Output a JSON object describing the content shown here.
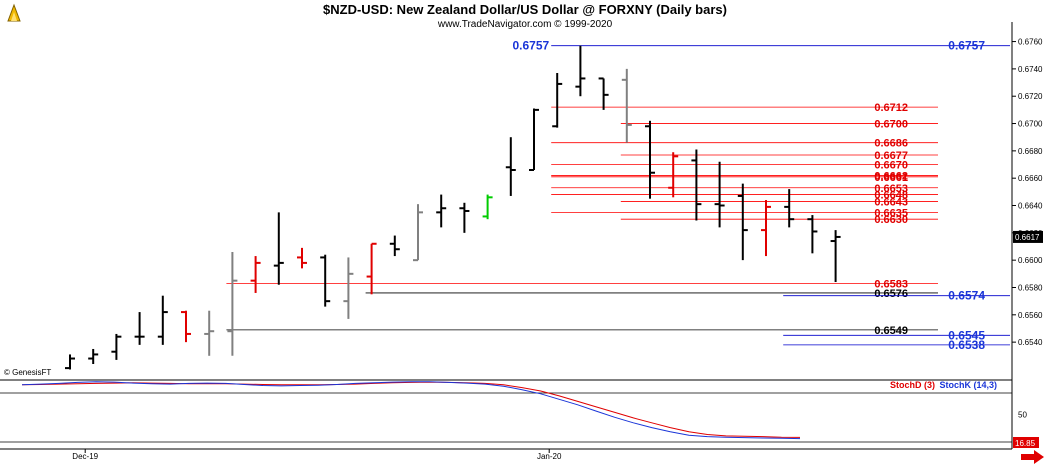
{
  "header": {
    "title": "$NZD-USD:  New Zealand Dollar/US Dollar @ FORXNY  (Daily bars)",
    "subtitle": "www.TradeNavigator.com © 1999-2020"
  },
  "watermark": "© GenesisFT",
  "legend": {
    "stoch_d": "StochD (3)",
    "stoch_k": "StochK (14,3)"
  },
  "colors": {
    "bar_black": "#000000",
    "bar_gray": "#808080",
    "bar_red": "#e00000",
    "bar_green": "#00cc00",
    "level_red": "#ff0000",
    "level_blue": "#0000cc",
    "level_black": "#000000",
    "label_red": "#e00000",
    "label_blue": "#1a35d8",
    "stoch_d": "#e00000",
    "stoch_k": "#1a35d8"
  },
  "chart_data": [
    {
      "type": "ohlc",
      "title": "$NZD-USD:  New Zealand Dollar/US Dollar @ FORXNY  (Daily bars)",
      "ylim": [
        0.6524,
        0.6767
      ],
      "yticks": [
        "0.6760",
        "0.6740",
        "0.6720",
        "0.6700",
        "0.6680",
        "0.6660",
        "0.6640",
        "0.6620",
        "0.6600",
        "0.6580",
        "0.6560",
        "0.6540"
      ],
      "xticks": [
        {
          "label": "Dec-19",
          "bar": 1
        },
        {
          "label": "Jan-20",
          "bar": 21
        }
      ],
      "last_price": "0.6617",
      "bars": [
        {
          "o": 0.6521,
          "h": 0.6531,
          "l": 0.652,
          "c": 0.6528,
          "color": "black"
        },
        {
          "o": 0.6528,
          "h": 0.6535,
          "l": 0.6524,
          "c": 0.6531,
          "color": "black"
        },
        {
          "o": 0.6533,
          "h": 0.6546,
          "l": 0.6527,
          "c": 0.6544,
          "color": "black"
        },
        {
          "o": 0.6544,
          "h": 0.6562,
          "l": 0.6538,
          "c": 0.6544,
          "color": "black"
        },
        {
          "o": 0.6544,
          "h": 0.6574,
          "l": 0.6538,
          "c": 0.6562,
          "color": "black"
        },
        {
          "o": 0.6562,
          "h": 0.6563,
          "l": 0.654,
          "c": 0.6546,
          "color": "red"
        },
        {
          "o": 0.6546,
          "h": 0.6563,
          "l": 0.653,
          "c": 0.6548,
          "color": "gray"
        },
        {
          "o": 0.6548,
          "h": 0.6606,
          "l": 0.653,
          "c": 0.6585,
          "color": "gray"
        },
        {
          "o": 0.6585,
          "h": 0.6603,
          "l": 0.6576,
          "c": 0.6598,
          "color": "red"
        },
        {
          "o": 0.6596,
          "h": 0.6635,
          "l": 0.6582,
          "c": 0.6598,
          "color": "black"
        },
        {
          "o": 0.6602,
          "h": 0.6609,
          "l": 0.6594,
          "c": 0.6598,
          "color": "red"
        },
        {
          "o": 0.6602,
          "h": 0.6604,
          "l": 0.6566,
          "c": 0.657,
          "color": "black"
        },
        {
          "o": 0.657,
          "h": 0.6602,
          "l": 0.6557,
          "c": 0.659,
          "color": "gray"
        },
        {
          "o": 0.6588,
          "h": 0.6612,
          "l": 0.6575,
          "c": 0.6612,
          "color": "red"
        },
        {
          "o": 0.6612,
          "h": 0.6618,
          "l": 0.6603,
          "c": 0.6608,
          "color": "black"
        },
        {
          "o": 0.66,
          "h": 0.6641,
          "l": 0.66,
          "c": 0.6635,
          "color": "gray"
        },
        {
          "o": 0.6635,
          "h": 0.6648,
          "l": 0.6624,
          "c": 0.6638,
          "color": "black"
        },
        {
          "o": 0.6638,
          "h": 0.6642,
          "l": 0.662,
          "c": 0.6636,
          "color": "black"
        },
        {
          "o": 0.6632,
          "h": 0.6648,
          "l": 0.663,
          "c": 0.6646,
          "color": "green"
        },
        {
          "o": 0.6668,
          "h": 0.669,
          "l": 0.6647,
          "c": 0.6666,
          "color": "black"
        },
        {
          "o": 0.6666,
          "h": 0.6711,
          "l": 0.6666,
          "c": 0.671,
          "color": "black"
        },
        {
          "o": 0.6698,
          "h": 0.6737,
          "l": 0.6697,
          "c": 0.6729,
          "color": "black"
        },
        {
          "o": 0.6727,
          "h": 0.6757,
          "l": 0.672,
          "c": 0.6733,
          "color": "black"
        },
        {
          "o": 0.6733,
          "h": 0.6733,
          "l": 0.671,
          "c": 0.6721,
          "color": "black"
        },
        {
          "o": 0.6732,
          "h": 0.674,
          "l": 0.6686,
          "c": 0.6699,
          "color": "gray"
        },
        {
          "o": 0.6698,
          "h": 0.6702,
          "l": 0.6645,
          "c": 0.6664,
          "color": "black"
        },
        {
          "o": 0.6653,
          "h": 0.6679,
          "l": 0.6646,
          "c": 0.6676,
          "color": "red"
        },
        {
          "o": 0.6673,
          "h": 0.6681,
          "l": 0.6629,
          "c": 0.6641,
          "color": "black"
        },
        {
          "o": 0.6641,
          "h": 0.6672,
          "l": 0.6624,
          "c": 0.664,
          "color": "black"
        },
        {
          "o": 0.6647,
          "h": 0.6656,
          "l": 0.66,
          "c": 0.6622,
          "color": "black"
        },
        {
          "o": 0.6622,
          "h": 0.6644,
          "l": 0.6603,
          "c": 0.6639,
          "color": "red"
        },
        {
          "o": 0.6639,
          "h": 0.6652,
          "l": 0.6624,
          "c": 0.663,
          "color": "black"
        },
        {
          "o": 0.663,
          "h": 0.6633,
          "l": 0.6605,
          "c": 0.6621,
          "color": "black"
        },
        {
          "o": 0.6614,
          "h": 0.6622,
          "l": 0.6584,
          "c": 0.6617,
          "color": "black"
        }
      ],
      "levels": [
        {
          "value": 0.6757,
          "label": "0.6757",
          "color": "blue",
          "from_bar": 21,
          "left_label": "0.6757"
        },
        {
          "value": 0.6712,
          "label": "0.6712",
          "color": "red",
          "from_bar": 21
        },
        {
          "value": 0.67,
          "label": "0.6700",
          "color": "red",
          "from_bar": 24
        },
        {
          "value": 0.6686,
          "label": "0.6686",
          "color": "red",
          "from_bar": 21
        },
        {
          "value": 0.6677,
          "label": "0.6677",
          "color": "red",
          "from_bar": 24
        },
        {
          "value": 0.667,
          "label": "0.6670",
          "color": "red",
          "from_bar": 21
        },
        {
          "value": 0.6662,
          "label": "0.6662",
          "color": "red",
          "from_bar": 21
        },
        {
          "value": 0.6661,
          "label": "0.6661",
          "color": "red",
          "from_bar": 21
        },
        {
          "value": 0.6653,
          "label": "0.6653",
          "color": "red",
          "from_bar": 21
        },
        {
          "value": 0.6648,
          "label": "0.6648",
          "color": "red",
          "from_bar": 21
        },
        {
          "value": 0.6643,
          "label": "0.6643",
          "color": "red",
          "from_bar": 24
        },
        {
          "value": 0.6635,
          "label": "0.6635",
          "color": "red",
          "from_bar": 21
        },
        {
          "value": 0.663,
          "label": "0.6630",
          "color": "red",
          "from_bar": 24
        },
        {
          "value": 0.6583,
          "label": "0.6583",
          "color": "red",
          "from_bar": 7
        },
        {
          "value": 0.6576,
          "label": "0.6576",
          "color": "black",
          "from_bar": 13
        },
        {
          "value": 0.6574,
          "label": "0.6574",
          "color": "blue",
          "from_bar": 31
        },
        {
          "value": 0.6549,
          "label": "0.6549",
          "color": "black",
          "from_bar": 7
        },
        {
          "value": 0.6545,
          "label": "0.6545",
          "color": "blue",
          "from_bar": 31
        },
        {
          "value": 0.6538,
          "label": "0.6538",
          "color": "blue",
          "from_bar": 31
        }
      ]
    },
    {
      "type": "line",
      "title": "",
      "ylim": [
        0,
        100
      ],
      "yticks": [
        "50"
      ],
      "last_value": "16.85",
      "series": [
        {
          "name": "StochD (3)",
          "color": "red",
          "values": [
            93,
            93.5,
            94,
            94.5,
            95,
            95.5,
            96,
            95.5,
            95,
            94.5,
            94.5,
            94.5,
            94,
            93.5,
            93,
            93,
            93,
            93.5,
            94,
            95,
            96,
            96.5,
            97,
            96.5,
            96,
            95,
            93,
            89,
            84,
            77,
            69,
            61,
            53,
            45,
            38,
            31,
            25,
            21,
            19,
            18.5,
            18,
            17,
            16.85
          ]
        },
        {
          "name": "StochK (14,3)",
          "color": "blue",
          "values": [
            93,
            94,
            95,
            96.5,
            97.5,
            97,
            95.5,
            94.5,
            94,
            95,
            95.5,
            95,
            93.5,
            92,
            91.5,
            92,
            92.5,
            93.5,
            95,
            96,
            97,
            97.5,
            97.5,
            96.5,
            95.5,
            94,
            91,
            86,
            80,
            72,
            64,
            55,
            46,
            38,
            31,
            25,
            20,
            18,
            17,
            16.5,
            16,
            15.5,
            15
          ]
        }
      ]
    }
  ]
}
